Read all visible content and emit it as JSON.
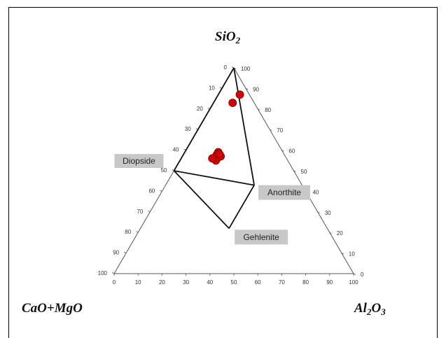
{
  "chart_data": {
    "type": "ternary",
    "apex_labels": {
      "top": {
        "main": "SiO",
        "sub": "2"
      },
      "left": {
        "main": "CaO+MgO",
        "sub": ""
      },
      "right": {
        "main": "Al",
        "sub": "2",
        "main2": "O",
        "sub2": "3"
      }
    },
    "ticks": [
      "0",
      "10",
      "20",
      "30",
      "40",
      "50",
      "60",
      "70",
      "80",
      "90",
      "100"
    ],
    "tick_values": [
      0,
      10,
      20,
      30,
      40,
      50,
      60,
      70,
      80,
      90,
      100
    ],
    "minerals": [
      {
        "name": "Diopside",
        "sio2": 50,
        "al2o3": 0,
        "cao_mgo": 50
      },
      {
        "name": "Anorthite",
        "sio2": 43,
        "al2o3": 37,
        "cao_mgo": 20
      },
      {
        "name": "Gehlenite",
        "sio2": 22,
        "al2o3": 37,
        "cao_mgo": 41
      }
    ],
    "tie_lines": [
      [
        "SiO2",
        "Anorthite"
      ],
      [
        "SiO2",
        "Diopside"
      ],
      [
        "Diopside",
        "Anorthite"
      ],
      [
        "Diopside",
        "Gehlenite"
      ],
      [
        "Gehlenite",
        "Anorthite"
      ]
    ],
    "samples": [
      {
        "sio2": 87,
        "al2o3": 9,
        "cao_mgo": 4
      },
      {
        "sio2": 83,
        "al2o3": 8,
        "cao_mgo": 9
      },
      {
        "sio2": 59,
        "al2o3": 14,
        "cao_mgo": 27
      },
      {
        "sio2": 58,
        "al2o3": 14,
        "cao_mgo": 28
      },
      {
        "sio2": 57,
        "al2o3": 14,
        "cao_mgo": 29
      },
      {
        "sio2": 56,
        "al2o3": 15,
        "cao_mgo": 29
      },
      {
        "sio2": 57,
        "al2o3": 16,
        "cao_mgo": 27
      },
      {
        "sio2": 55,
        "al2o3": 15,
        "cao_mgo": 30
      },
      {
        "sio2": 56,
        "al2o3": 13,
        "cao_mgo": 31
      },
      {
        "sio2": 58,
        "al2o3": 15,
        "cao_mgo": 27
      }
    ],
    "colors": {
      "sample_fill": "#d40000",
      "sample_stroke": "#7a0000",
      "axis": "#555555",
      "tie_line": "#111111"
    }
  }
}
